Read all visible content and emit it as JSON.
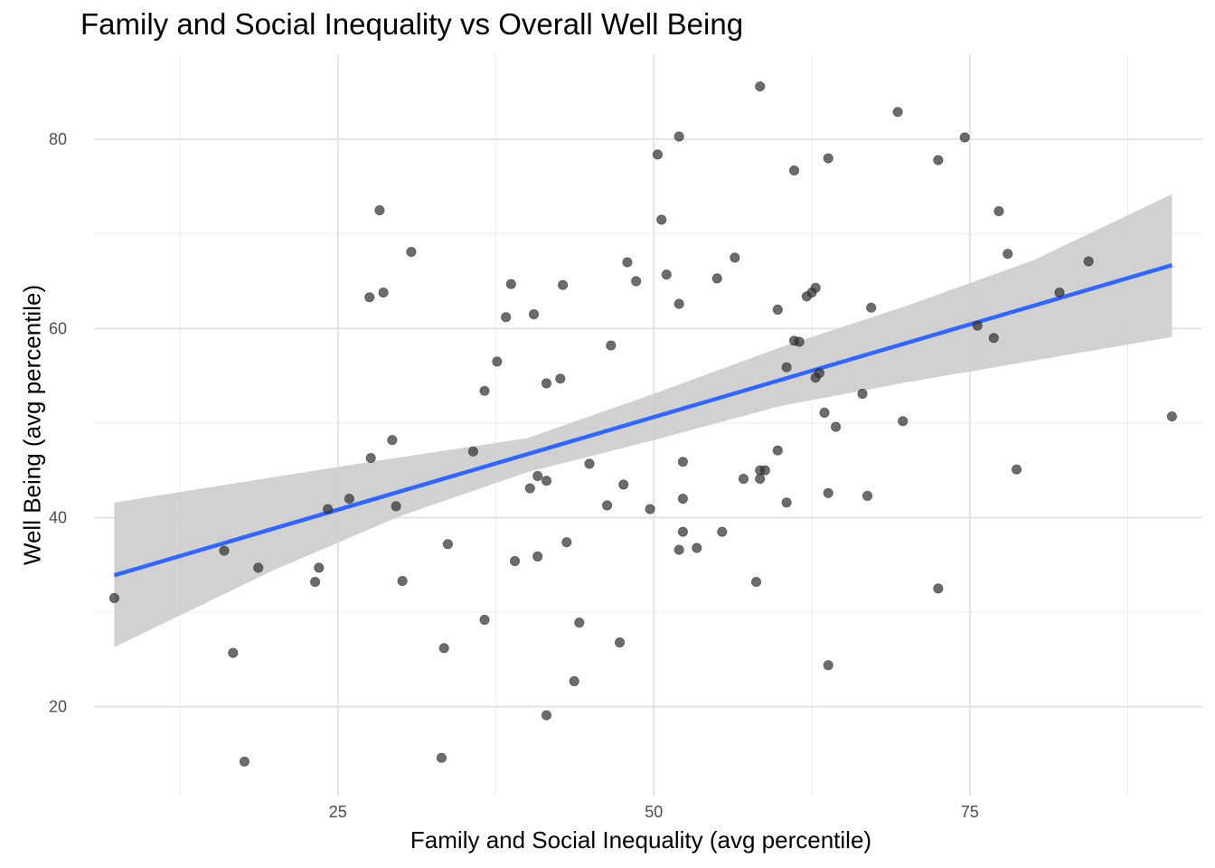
{
  "chart_data": {
    "type": "scatter",
    "title": "Family and Social Inequality vs Overall Well Being",
    "xlabel": "Family and Social Inequality (avg percentile)",
    "ylabel": "Well Being (avg percentile)",
    "xlim": [
      5.7,
      93.4
    ],
    "ylim": [
      10.6,
      89.0
    ],
    "x_ticks": [
      25,
      50,
      75
    ],
    "y_ticks": [
      20,
      40,
      60,
      80
    ],
    "grid": true,
    "points": [
      [
        7.3,
        31.5
      ],
      [
        16.0,
        36.5
      ],
      [
        16.7,
        25.7
      ],
      [
        17.6,
        14.2
      ],
      [
        18.7,
        34.7
      ],
      [
        23.2,
        33.2
      ],
      [
        23.5,
        34.7
      ],
      [
        24.2,
        40.9
      ],
      [
        25.9,
        42.0
      ],
      [
        27.5,
        63.3
      ],
      [
        27.6,
        46.3
      ],
      [
        28.3,
        72.5
      ],
      [
        28.6,
        63.8
      ],
      [
        29.3,
        48.2
      ],
      [
        29.6,
        41.2
      ],
      [
        30.1,
        33.3
      ],
      [
        30.8,
        68.1
      ],
      [
        33.2,
        14.6
      ],
      [
        33.4,
        26.2
      ],
      [
        33.7,
        37.2
      ],
      [
        35.7,
        47.0
      ],
      [
        36.6,
        29.2
      ],
      [
        36.6,
        53.4
      ],
      [
        37.6,
        56.5
      ],
      [
        38.3,
        61.2
      ],
      [
        38.7,
        64.7
      ],
      [
        39.0,
        35.4
      ],
      [
        40.2,
        43.1
      ],
      [
        40.5,
        61.5
      ],
      [
        40.8,
        44.4
      ],
      [
        40.8,
        35.9
      ],
      [
        41.5,
        43.9
      ],
      [
        41.5,
        54.2
      ],
      [
        41.5,
        19.1
      ],
      [
        42.6,
        54.7
      ],
      [
        42.8,
        64.6
      ],
      [
        43.1,
        37.4
      ],
      [
        43.7,
        22.7
      ],
      [
        44.1,
        28.9
      ],
      [
        44.9,
        45.7
      ],
      [
        46.3,
        41.3
      ],
      [
        46.6,
        58.2
      ],
      [
        47.3,
        26.8
      ],
      [
        47.6,
        43.5
      ],
      [
        47.9,
        67.0
      ],
      [
        48.6,
        65.0
      ],
      [
        49.7,
        40.9
      ],
      [
        50.3,
        78.4
      ],
      [
        50.6,
        71.5
      ],
      [
        51.0,
        65.7
      ],
      [
        52.0,
        80.3
      ],
      [
        52.0,
        62.6
      ],
      [
        52.0,
        36.6
      ],
      [
        52.3,
        38.5
      ],
      [
        52.3,
        42.0
      ],
      [
        52.3,
        45.9
      ],
      [
        53.4,
        36.8
      ],
      [
        55.0,
        65.3
      ],
      [
        55.4,
        38.5
      ],
      [
        56.4,
        67.5
      ],
      [
        57.1,
        44.1
      ],
      [
        58.1,
        33.2
      ],
      [
        58.4,
        45.0
      ],
      [
        58.4,
        44.1
      ],
      [
        58.4,
        85.6
      ],
      [
        58.8,
        45.0
      ],
      [
        59.8,
        62.0
      ],
      [
        59.8,
        47.1
      ],
      [
        60.5,
        41.6
      ],
      [
        60.5,
        55.9
      ],
      [
        61.1,
        76.7
      ],
      [
        61.1,
        58.7
      ],
      [
        61.5,
        58.6
      ],
      [
        62.1,
        63.4
      ],
      [
        62.5,
        63.8
      ],
      [
        62.8,
        64.3
      ],
      [
        62.8,
        54.8
      ],
      [
        63.1,
        55.3
      ],
      [
        63.5,
        51.1
      ],
      [
        63.8,
        78.0
      ],
      [
        63.8,
        42.6
      ],
      [
        63.8,
        24.4
      ],
      [
        64.4,
        49.6
      ],
      [
        66.5,
        53.1
      ],
      [
        66.9,
        42.3
      ],
      [
        67.2,
        62.2
      ],
      [
        69.3,
        82.9
      ],
      [
        69.7,
        50.2
      ],
      [
        72.5,
        77.8
      ],
      [
        72.5,
        32.5
      ],
      [
        74.6,
        80.2
      ],
      [
        75.6,
        60.3
      ],
      [
        76.9,
        59.0
      ],
      [
        77.3,
        72.4
      ],
      [
        78.0,
        67.9
      ],
      [
        78.7,
        45.1
      ],
      [
        82.1,
        63.8
      ],
      [
        84.4,
        67.1
      ],
      [
        91.0,
        50.7
      ]
    ],
    "trend_line": {
      "method": "lm",
      "x": [
        7.3,
        91.0
      ],
      "y": [
        33.9,
        66.7
      ],
      "color": "#3366FF"
    },
    "confidence_band": {
      "x": [
        7.3,
        20.0,
        30.0,
        40.0,
        50.0,
        60.0,
        70.0,
        80.0,
        91.0
      ],
      "lower": [
        26.3,
        34.5,
        40.2,
        44.8,
        48.2,
        51.8,
        54.3,
        56.6,
        59.1
      ],
      "upper": [
        41.6,
        44.3,
        46.4,
        48.4,
        53.1,
        58.0,
        62.4,
        67.2,
        74.2
      ],
      "color": "#cccccc"
    },
    "point_color": "#333333"
  }
}
